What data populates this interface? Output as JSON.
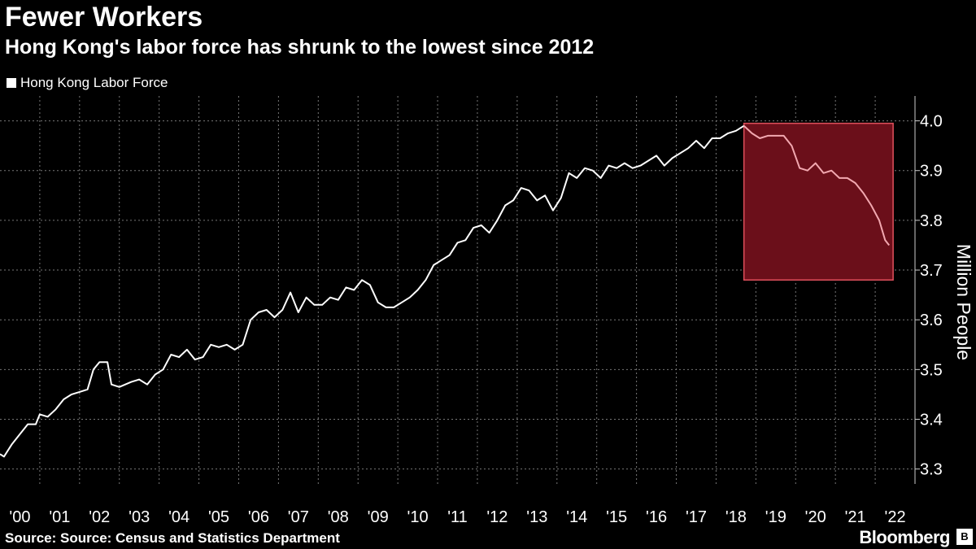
{
  "header": {
    "title": "Fewer Workers",
    "subtitle": "Hong Kong's labor force has shrunk to the lowest since 2012"
  },
  "legend": {
    "label": "Hong Kong Labor Force"
  },
  "footer": {
    "source": "Source: Source: Census and Statistics Department",
    "brand": "Bloomberg",
    "brand_icon": "bloomberg-terminal-icon"
  },
  "colors": {
    "background": "#000000",
    "line": "#ffffff",
    "highlight_fill": "#6b0f1a",
    "highlight_stroke": "#e0505c",
    "highlight_line": "#f2a8b0",
    "grid": "#777777"
  },
  "chart_data": {
    "type": "line",
    "title": "Fewer Workers",
    "subtitle": "Hong Kong's labor force has shrunk to the lowest since 2012",
    "ylabel": "Million People",
    "ylim": [
      3.27,
      4.05
    ],
    "y_ticks": [
      "3.3",
      "3.4",
      "3.5",
      "3.6",
      "3.7",
      "3.8",
      "3.9",
      "4.0"
    ],
    "x_ticks": [
      "'00",
      "'01",
      "'02",
      "'03",
      "'04",
      "'05",
      "'06",
      "'07",
      "'08",
      "'09",
      "'10",
      "'11",
      "'12",
      "'13",
      "'14",
      "'15",
      "'16",
      "'17",
      "'18",
      "'19",
      "'20",
      "'21",
      "'22"
    ],
    "xlim": [
      2000.0,
      2023.0
    ],
    "grid": true,
    "legend_position": "top-left",
    "highlight": {
      "x_start": 2018.7,
      "x_end": 2022.45,
      "y_low": 3.68,
      "y_high": 3.995
    },
    "series": [
      {
        "name": "Hong Kong Labor Force",
        "x": [
          2000.0,
          2000.1,
          2000.3,
          2000.5,
          2000.7,
          2000.9,
          2001.0,
          2001.2,
          2001.4,
          2001.6,
          2001.8,
          2002.0,
          2002.2,
          2002.35,
          2002.5,
          2002.7,
          2002.8,
          2003.0,
          2003.3,
          2003.5,
          2003.7,
          2003.9,
          2004.1,
          2004.3,
          2004.5,
          2004.7,
          2004.9,
          2005.1,
          2005.3,
          2005.5,
          2005.7,
          2005.9,
          2006.1,
          2006.3,
          2006.5,
          2006.7,
          2006.9,
          2007.1,
          2007.3,
          2007.5,
          2007.7,
          2007.9,
          2008.1,
          2008.3,
          2008.5,
          2008.7,
          2008.9,
          2009.1,
          2009.3,
          2009.5,
          2009.7,
          2009.9,
          2010.1,
          2010.3,
          2010.5,
          2010.7,
          2010.9,
          2011.1,
          2011.3,
          2011.5,
          2011.7,
          2011.9,
          2012.1,
          2012.3,
          2012.5,
          2012.7,
          2012.9,
          2013.1,
          2013.3,
          2013.5,
          2013.7,
          2013.9,
          2014.1,
          2014.3,
          2014.5,
          2014.7,
          2014.9,
          2015.1,
          2015.3,
          2015.5,
          2015.7,
          2015.9,
          2016.1,
          2016.3,
          2016.5,
          2016.7,
          2016.9,
          2017.1,
          2017.3,
          2017.5,
          2017.7,
          2017.9,
          2018.1,
          2018.3,
          2018.5,
          2018.7
        ],
        "values": [
          3.33,
          3.325,
          3.35,
          3.37,
          3.39,
          3.39,
          3.41,
          3.405,
          3.42,
          3.44,
          3.45,
          3.455,
          3.46,
          3.5,
          3.515,
          3.515,
          3.47,
          3.465,
          3.475,
          3.48,
          3.47,
          3.49,
          3.5,
          3.53,
          3.525,
          3.54,
          3.52,
          3.525,
          3.55,
          3.545,
          3.55,
          3.54,
          3.55,
          3.6,
          3.615,
          3.62,
          3.605,
          3.62,
          3.655,
          3.615,
          3.645,
          3.63,
          3.63,
          3.645,
          3.64,
          3.665,
          3.66,
          3.68,
          3.67,
          3.635,
          3.625,
          3.625,
          3.635,
          3.645,
          3.66,
          3.68,
          3.71,
          3.72,
          3.73,
          3.755,
          3.76,
          3.785,
          3.79,
          3.775,
          3.8,
          3.83,
          3.84,
          3.865,
          3.86,
          3.84,
          3.85,
          3.82,
          3.845,
          3.895,
          3.885,
          3.905,
          3.9,
          3.885,
          3.91,
          3.905,
          3.915,
          3.905,
          3.91,
          3.92,
          3.93,
          3.91,
          3.925,
          3.935,
          3.945,
          3.96,
          3.945,
          3.965,
          3.965,
          3.975,
          3.98,
          3.99
        ]
      },
      {
        "name": "Hong Kong Labor Force (highlighted period)",
        "x": [
          2018.7,
          2018.9,
          2019.1,
          2019.3,
          2019.5,
          2019.7,
          2019.9,
          2020.1,
          2020.3,
          2020.5,
          2020.7,
          2020.9,
          2021.1,
          2021.3,
          2021.5,
          2021.7,
          2021.9,
          2022.1,
          2022.25,
          2022.35
        ],
        "values": [
          3.99,
          3.975,
          3.965,
          3.97,
          3.97,
          3.97,
          3.95,
          3.905,
          3.9,
          3.915,
          3.895,
          3.9,
          3.885,
          3.885,
          3.875,
          3.855,
          3.83,
          3.8,
          3.76,
          3.75
        ]
      }
    ]
  }
}
